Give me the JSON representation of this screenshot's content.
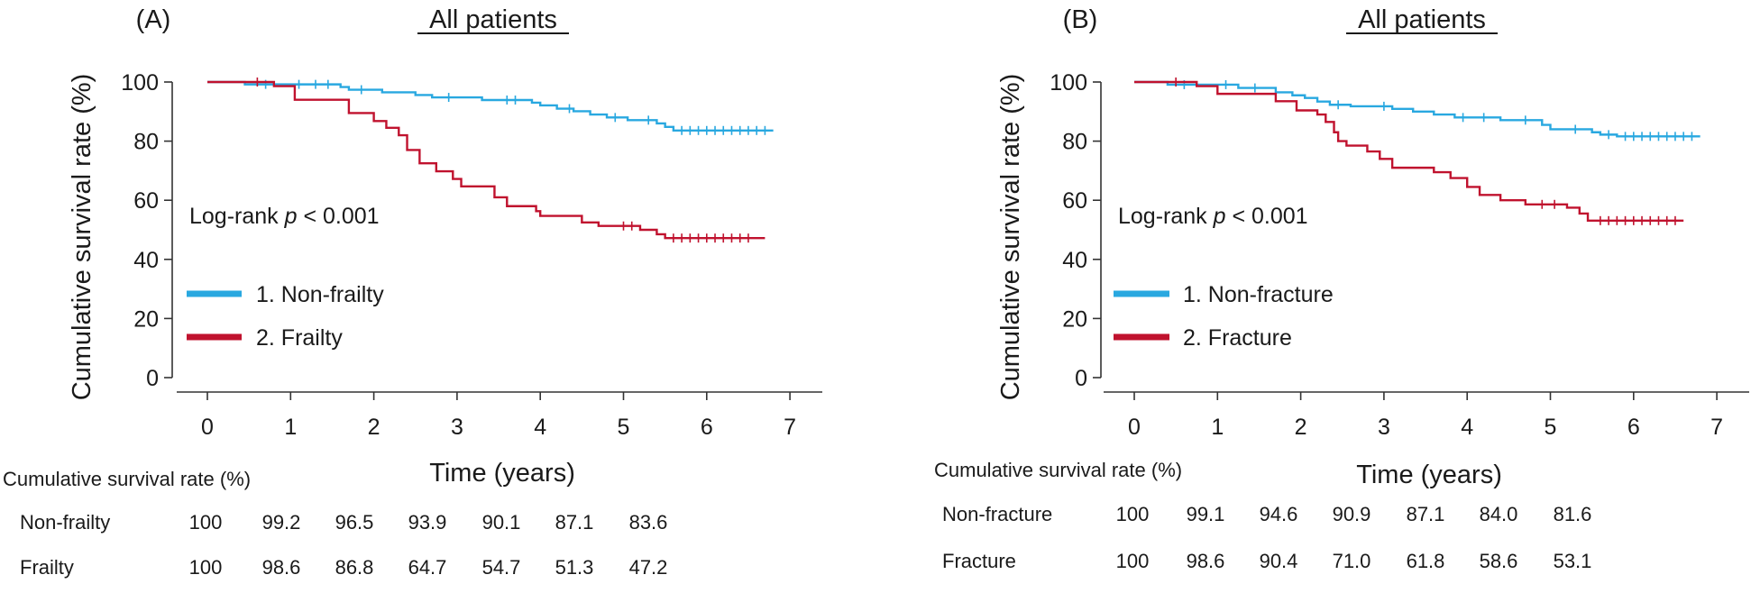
{
  "colors": {
    "blue": "#29a8e0",
    "red": "#c0122e",
    "axis": "#333333"
  },
  "chart_data": [
    {
      "type": "line",
      "panel": "(A)",
      "title": "All patients",
      "xlabel": "Time (years)",
      "ylabel": "Cumulative survival rate (%)",
      "xlim": [
        0,
        7
      ],
      "ylim": [
        0,
        100
      ],
      "xticks": [
        0,
        1,
        2,
        3,
        4,
        5,
        6,
        7
      ],
      "yticks": [
        0,
        20,
        40,
        60,
        80,
        100
      ],
      "annotation": {
        "prefix": "Log-rank ",
        "italic": "p",
        "suffix": " < 0.001"
      },
      "legend_placement": "left",
      "series": [
        {
          "name": "1. Non-frailty",
          "color": "#29a8e0",
          "steps": [
            [
              0,
              100
            ],
            [
              0.45,
              99.2
            ],
            [
              1.6,
              98.3
            ],
            [
              1.7,
              97.4
            ],
            [
              2.1,
              96.5
            ],
            [
              2.5,
              95.6
            ],
            [
              2.7,
              94.8
            ],
            [
              3.0,
              94.8
            ],
            [
              3.3,
              93.9
            ],
            [
              3.9,
              93.0
            ],
            [
              4.0,
              92.1
            ],
            [
              4.2,
              91.0
            ],
            [
              4.4,
              90.1
            ],
            [
              4.6,
              89.0
            ],
            [
              4.8,
              88.0
            ],
            [
              5.05,
              87.1
            ],
            [
              5.4,
              86.0
            ],
            [
              5.5,
              84.8
            ],
            [
              5.6,
              83.6
            ],
            [
              6.8,
              83.6
            ]
          ],
          "censors": [
            [
              0.7,
              99.2
            ],
            [
              1.1,
              99.2
            ],
            [
              1.3,
              99.2
            ],
            [
              1.45,
              99.2
            ],
            [
              1.85,
              97.4
            ],
            [
              2.9,
              94.8
            ],
            [
              3.6,
              93.9
            ],
            [
              3.7,
              93.9
            ],
            [
              4.35,
              91.0
            ],
            [
              4.9,
              88.0
            ],
            [
              5.3,
              87.1
            ],
            [
              5.7,
              83.6
            ],
            [
              5.8,
              83.6
            ],
            [
              5.9,
              83.6
            ],
            [
              6.0,
              83.6
            ],
            [
              6.1,
              83.6
            ],
            [
              6.2,
              83.6
            ],
            [
              6.3,
              83.6
            ],
            [
              6.4,
              83.6
            ],
            [
              6.5,
              83.6
            ],
            [
              6.6,
              83.6
            ],
            [
              6.7,
              83.6
            ]
          ]
        },
        {
          "name": "2. Frailty",
          "color": "#c0122e",
          "steps": [
            [
              0,
              100
            ],
            [
              0.8,
              98.6
            ],
            [
              1.05,
              94.0
            ],
            [
              1.7,
              89.5
            ],
            [
              2.0,
              86.8
            ],
            [
              2.15,
              84.5
            ],
            [
              2.3,
              82.0
            ],
            [
              2.4,
              77.0
            ],
            [
              2.55,
              72.5
            ],
            [
              2.75,
              69.8
            ],
            [
              2.95,
              67.2
            ],
            [
              3.05,
              64.7
            ],
            [
              3.45,
              61.0
            ],
            [
              3.6,
              58.0
            ],
            [
              3.95,
              56.3
            ],
            [
              4.0,
              54.7
            ],
            [
              4.5,
              52.5
            ],
            [
              4.7,
              51.3
            ],
            [
              5.2,
              50.0
            ],
            [
              5.4,
              48.5
            ],
            [
              5.5,
              47.2
            ],
            [
              6.7,
              47.2
            ]
          ],
          "censors": [
            [
              0.6,
              100
            ],
            [
              5.0,
              51.3
            ],
            [
              5.1,
              51.3
            ],
            [
              5.6,
              47.2
            ],
            [
              5.7,
              47.2
            ],
            [
              5.8,
              47.2
            ],
            [
              5.9,
              47.2
            ],
            [
              6.0,
              47.2
            ],
            [
              6.1,
              47.2
            ],
            [
              6.2,
              47.2
            ],
            [
              6.3,
              47.2
            ],
            [
              6.4,
              47.2
            ],
            [
              6.5,
              47.2
            ]
          ]
        }
      ],
      "table": {
        "title": "Cumulative survival rate (%)",
        "rows": [
          {
            "label": "Non-frailty",
            "values": [
              "100",
              "99.2",
              "96.5",
              "93.9",
              "90.1",
              "87.1",
              "83.6"
            ]
          },
          {
            "label": "Frailty",
            "values": [
              "100",
              "98.6",
              "86.8",
              "64.7",
              "54.7",
              "51.3",
              "47.2"
            ]
          }
        ]
      }
    },
    {
      "type": "line",
      "panel": "(B)",
      "title": "All patients",
      "xlabel": "Time (years)",
      "ylabel": "Cumulative survival rate (%)",
      "xlim": [
        0,
        7
      ],
      "ylim": [
        0,
        100
      ],
      "xticks": [
        0,
        1,
        2,
        3,
        4,
        5,
        6,
        7
      ],
      "yticks": [
        0,
        20,
        40,
        60,
        80,
        100
      ],
      "annotation": {
        "prefix": "Log-rank ",
        "italic": "p",
        "suffix": " < 0.001"
      },
      "legend_placement": "left",
      "series": [
        {
          "name": "1. Non-fracture",
          "color": "#29a8e0",
          "steps": [
            [
              0,
              100
            ],
            [
              0.4,
              99.1
            ],
            [
              1.25,
              98.0
            ],
            [
              1.7,
              96.5
            ],
            [
              1.9,
              95.5
            ],
            [
              2.05,
              94.6
            ],
            [
              2.2,
              93.4
            ],
            [
              2.35,
              92.3
            ],
            [
              2.6,
              91.8
            ],
            [
              3.1,
              90.9
            ],
            [
              3.35,
              90.0
            ],
            [
              3.6,
              89.0
            ],
            [
              3.85,
              88.0
            ],
            [
              4.4,
              87.1
            ],
            [
              4.9,
              85.5
            ],
            [
              5.0,
              84.0
            ],
            [
              5.5,
              83.0
            ],
            [
              5.6,
              82.2
            ],
            [
              5.8,
              81.6
            ],
            [
              6.8,
              81.6
            ]
          ],
          "censors": [
            [
              0.6,
              99.1
            ],
            [
              1.1,
              99.1
            ],
            [
              1.45,
              98.0
            ],
            [
              2.45,
              92.3
            ],
            [
              3.0,
              91.8
            ],
            [
              3.95,
              88.0
            ],
            [
              4.2,
              88.0
            ],
            [
              4.7,
              87.1
            ],
            [
              5.3,
              84.0
            ],
            [
              5.7,
              82.2
            ],
            [
              5.9,
              81.6
            ],
            [
              6.0,
              81.6
            ],
            [
              6.1,
              81.6
            ],
            [
              6.2,
              81.6
            ],
            [
              6.3,
              81.6
            ],
            [
              6.4,
              81.6
            ],
            [
              6.5,
              81.6
            ],
            [
              6.6,
              81.6
            ],
            [
              6.7,
              81.6
            ]
          ]
        },
        {
          "name": "2. Fracture",
          "color": "#c0122e",
          "steps": [
            [
              0,
              100
            ],
            [
              0.75,
              98.6
            ],
            [
              1.0,
              96.0
            ],
            [
              1.7,
              93.5
            ],
            [
              1.95,
              90.4
            ],
            [
              2.2,
              89.0
            ],
            [
              2.3,
              86.5
            ],
            [
              2.4,
              83.0
            ],
            [
              2.45,
              80.0
            ],
            [
              2.55,
              78.5
            ],
            [
              2.8,
              76.5
            ],
            [
              2.95,
              74.0
            ],
            [
              3.1,
              71.0
            ],
            [
              3.6,
              69.5
            ],
            [
              3.8,
              67.5
            ],
            [
              4.0,
              64.5
            ],
            [
              4.15,
              61.8
            ],
            [
              4.4,
              60.0
            ],
            [
              4.7,
              58.6
            ],
            [
              5.2,
              57.5
            ],
            [
              5.35,
              55.5
            ],
            [
              5.45,
              53.1
            ],
            [
              6.6,
              53.1
            ]
          ],
          "censors": [
            [
              0.5,
              100
            ],
            [
              4.9,
              58.6
            ],
            [
              5.05,
              58.6
            ],
            [
              5.6,
              53.1
            ],
            [
              5.7,
              53.1
            ],
            [
              5.8,
              53.1
            ],
            [
              5.9,
              53.1
            ],
            [
              6.0,
              53.1
            ],
            [
              6.1,
              53.1
            ],
            [
              6.2,
              53.1
            ],
            [
              6.3,
              53.1
            ],
            [
              6.4,
              53.1
            ],
            [
              6.5,
              53.1
            ]
          ]
        }
      ],
      "table": {
        "title": "Cumulative survival rate (%)",
        "rows": [
          {
            "label": "Non-fracture",
            "values": [
              "100",
              "99.1",
              "94.6",
              "90.9",
              "87.1",
              "84.0",
              "81.6"
            ]
          },
          {
            "label": "Fracture",
            "values": [
              "100",
              "98.6",
              "90.4",
              "71.0",
              "61.8",
              "58.6",
              "53.1"
            ]
          }
        ]
      }
    }
  ]
}
